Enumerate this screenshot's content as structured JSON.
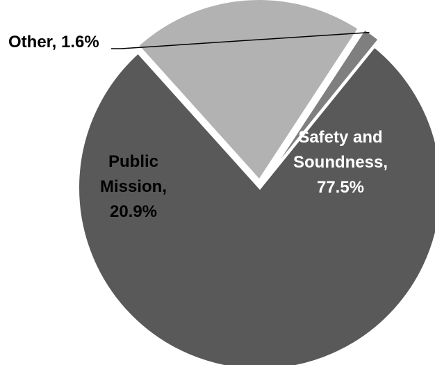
{
  "chart_data": {
    "type": "pie",
    "slices": [
      {
        "name": "Safety and Soundness",
        "value": 77.5,
        "label_lines": [
          "Safety and",
          "Soundness,",
          "77.5%"
        ],
        "color": "#595959",
        "text_color": "#ffffff"
      },
      {
        "name": "Public Mission",
        "value": 20.9,
        "label_lines": [
          "Public",
          "Mission,",
          "20.9%"
        ],
        "color": "#b2b2b2",
        "text_color": "#000000"
      },
      {
        "name": "Other",
        "value": 1.6,
        "label_lines": [
          "Other, 1.6%"
        ],
        "color": "#7f7f7f",
        "text_color": "#000000",
        "label_position": "outside"
      }
    ]
  }
}
